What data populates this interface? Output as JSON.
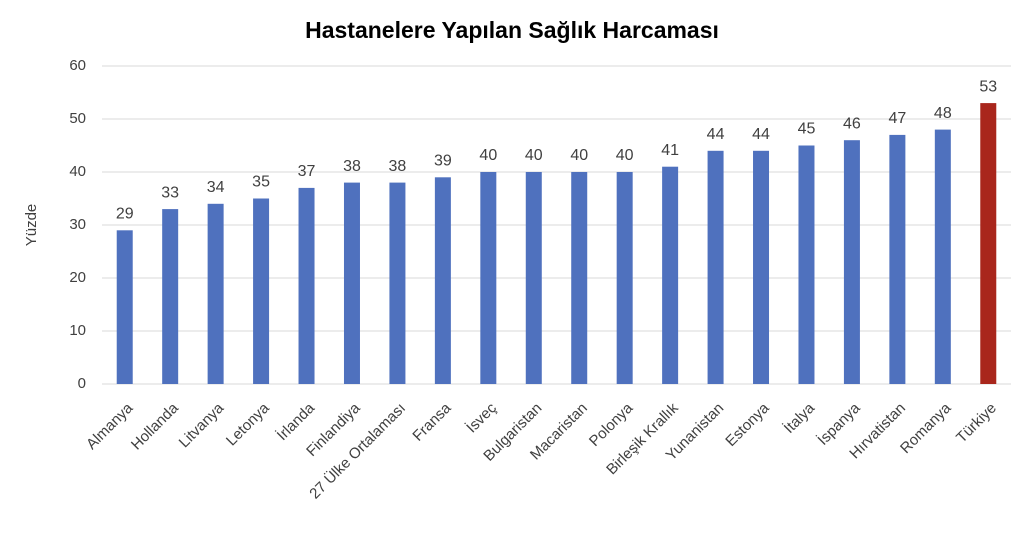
{
  "chart_data": {
    "type": "bar",
    "title": "Hastanelere Yapılan Sağlık Harcaması",
    "ylabel": "Yüzde",
    "categories": [
      "Almanya",
      "Hollanda",
      "Litvanya",
      "Letonya",
      "İrlanda",
      "Finlandiya",
      "27 Ülke Ortalaması",
      "Fransa",
      "İsveç",
      "Bulgaristan",
      "Macaristan",
      "Polonya",
      "Birleşik Krallık",
      "Yunanistan",
      "Estonya",
      "İtalya",
      "İspanya",
      "Hırvatistan",
      "Romanya",
      "Türkiye"
    ],
    "values": [
      29,
      33,
      34,
      35,
      37,
      38,
      38,
      39,
      40,
      40,
      40,
      40,
      41,
      44,
      44,
      45,
      46,
      47,
      48,
      53
    ],
    "colors": [
      "#4f71be",
      "#4f71be",
      "#4f71be",
      "#4f71be",
      "#4f71be",
      "#4f71be",
      "#4f71be",
      "#4f71be",
      "#4f71be",
      "#4f71be",
      "#4f71be",
      "#4f71be",
      "#4f71be",
      "#4f71be",
      "#4f71be",
      "#4f71be",
      "#4f71be",
      "#4f71be",
      "#4f71be",
      "#a9261c"
    ],
    "ylim": [
      0,
      60
    ],
    "yticks": [
      0,
      10,
      20,
      30,
      40,
      50,
      60
    ],
    "grid": true
  }
}
